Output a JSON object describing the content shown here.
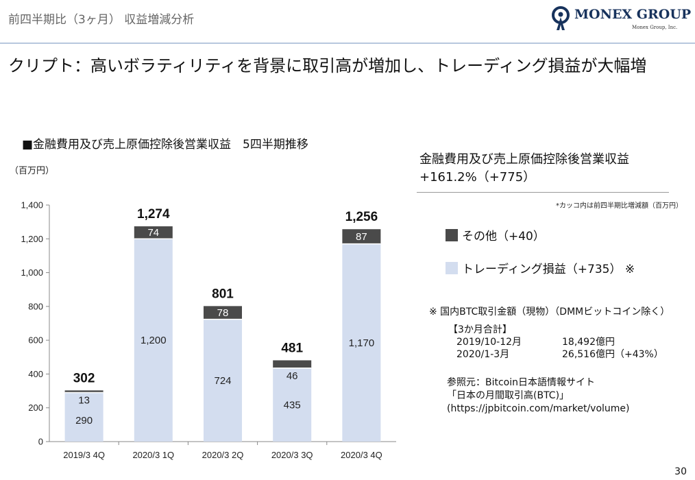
{
  "header": {
    "title": "前四半期比（3ヶ月） 収益増減分析",
    "logo_text": "MONEX GROUP",
    "logo_sub": "Monex Group, Inc."
  },
  "main_heading": "クリプト：高いボラティリティを背景に取引高が増加し、トレーディング損益が大幅増",
  "chart_section": {
    "title": "■金融費用及び売上原価控除後営業収益　5四半期推移",
    "unit": "（百万円）"
  },
  "side": {
    "title_line1": "金融費用及び売上原価控除後営業収益",
    "title_line2": "+161.2%（+775）",
    "note": "*カッコ内は前四半期比増減額（百万円）",
    "legend_other": "その他（+40）",
    "legend_trading": "トレーディング損益（+735） ※",
    "btc_note": "※ 国内BTC取引金額（現物）（DMMビットコイン除く）",
    "btc_header": "【3か月合計】",
    "btc_rows": [
      {
        "period": "2019/10-12月",
        "amount": "18,492億円"
      },
      {
        "period": "2020/1-3月",
        "amount": "26,516億円（+43%）"
      }
    ],
    "ref_line1": "参照元：Bitcoin日本語情報サイト",
    "ref_line2": "「日本の月間取引高(BTC)」",
    "ref_line3": "(https://jpbitcoin.com/market/volume)"
  },
  "page_number": "30",
  "colors": {
    "trading": "#d3ddef",
    "other": "#4a4a4a",
    "axis": "#888888",
    "brand_navy": "#17325c"
  },
  "chart_data": {
    "type": "bar",
    "stacked": true,
    "categories": [
      "2019/3 4Q",
      "2020/3 1Q",
      "2020/3 2Q",
      "2020/3 3Q",
      "2020/3 4Q"
    ],
    "series": [
      {
        "name": "トレーディング損益",
        "values": [
          290,
          1200,
          724,
          435,
          1170
        ]
      },
      {
        "name": "その他",
        "values": [
          13,
          74,
          78,
          46,
          87
        ]
      }
    ],
    "totals": [
      302,
      1274,
      801,
      481,
      1256
    ],
    "ylim": [
      0,
      1400
    ],
    "yticks": [
      0,
      200,
      400,
      600,
      800,
      1000,
      1200,
      1400
    ],
    "ytick_labels": [
      "0",
      "200",
      "400",
      "600",
      "800",
      "1,000",
      "1,200",
      "1,400"
    ],
    "value_labels_trading": [
      "290",
      "1,200",
      "724",
      "435",
      "1,170"
    ],
    "value_labels_other": [
      "13",
      "74",
      "78",
      "46",
      "87"
    ],
    "total_labels": [
      "302",
      "1,274",
      "801",
      "481",
      "1,256"
    ],
    "grid": false
  }
}
